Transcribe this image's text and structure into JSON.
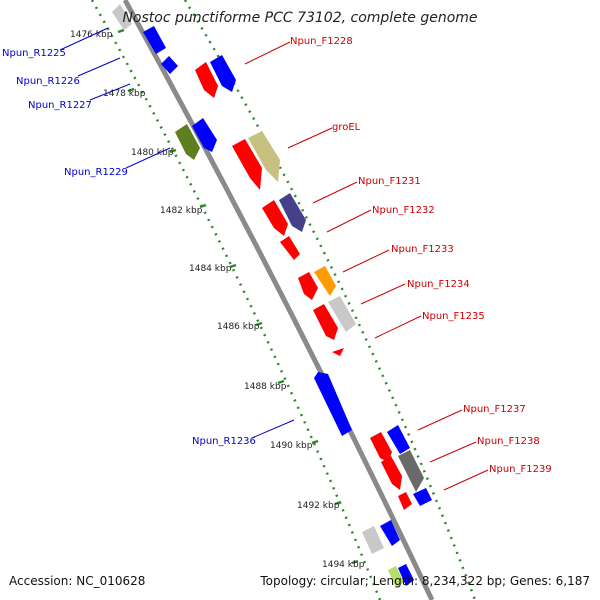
{
  "title": "Nostoc punctiforme PCC 73102, complete genome",
  "footer": {
    "accession": "Accession: NC_010628",
    "topology": "Topology: circular; Length: 8,234,322 bp; Genes: 6,187"
  },
  "scale_labels": [
    "1476 kbp",
    "1478 kbp",
    "1480 kbp",
    "1482 kbp",
    "1484 kbp",
    "1486 kbp",
    "1488 kbp",
    "1490 kbp",
    "1492 kbp",
    "1494 kbp"
  ],
  "genes_left": [
    {
      "label": "Npun_R1225"
    },
    {
      "label": "Npun_R1226"
    },
    {
      "label": "Npun_R1227"
    },
    {
      "label": "Npun_R1229"
    },
    {
      "label": "Npun_R1236"
    }
  ],
  "genes_right": [
    {
      "label": "Npun_F1228"
    },
    {
      "label": "groEL"
    },
    {
      "label": "Npun_F1231"
    },
    {
      "label": "Npun_F1232"
    },
    {
      "label": "Npun_F1233"
    },
    {
      "label": "Npun_F1234"
    },
    {
      "label": "Npun_F1235"
    },
    {
      "label": "Npun_F1237"
    },
    {
      "label": "Npun_F1238"
    },
    {
      "label": "Npun_F1239"
    }
  ],
  "colors": {
    "blue_gene": "#0000ff",
    "red_gene": "#ff0000",
    "olive_gene": "#5f7f1f",
    "khaki_gene": "#c8c080",
    "purple_gene": "#44408a",
    "orange_gene": "#ff9a00",
    "gray_gene": "#c8c8c8",
    "dark_gray_gene": "#6a6a6a",
    "backbone": "#8a8a8a",
    "dotted_track": "#2a8a2a",
    "label_blue": "#0000cc",
    "label_red": "#cc0000"
  }
}
